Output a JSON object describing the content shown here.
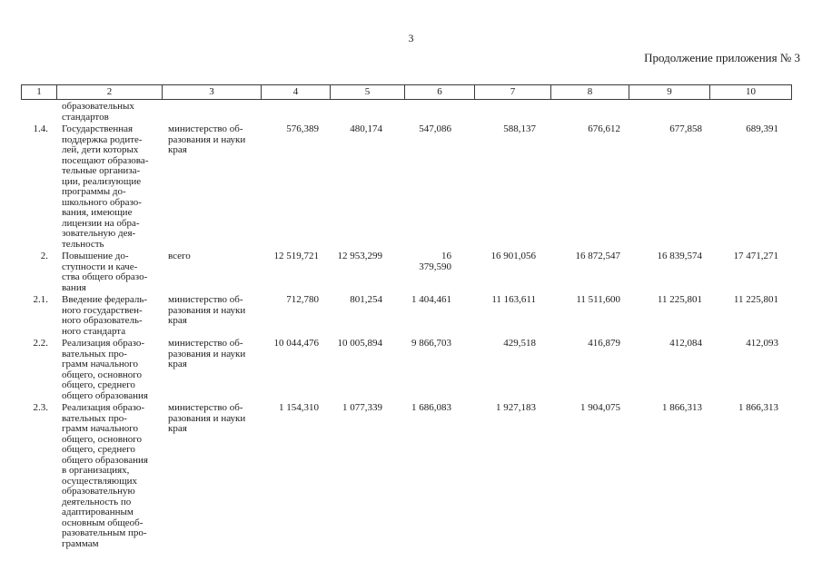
{
  "page": {
    "page_number": "3",
    "continuation_note": "Продолжение приложения № 3"
  },
  "table": {
    "column_numbers": [
      "1",
      "2",
      "3",
      "4",
      "5",
      "6",
      "7",
      "8",
      "9",
      "10"
    ],
    "carryover_row": {
      "name": "образовательных\nстандартов"
    },
    "rows": [
      {
        "num": "1.4.",
        "name": "Государственная\nподдержка родите-\nлей, дети которых\nпосещают образова-\nтельные организа-\nции, реализующие\nпрограммы до-\nшкольного образо-\nвания, имеющие\nлицензии на обра-\nзовательную дея-\nтельность",
        "executor": "министерство об-\nразования и науки\nкрая",
        "values": [
          "576,389",
          "480,174",
          "547,086",
          "588,137",
          "676,612",
          "677,858",
          "689,391"
        ]
      },
      {
        "num": "2.",
        "name": "Повышение до-\nступности и каче-\nства общего образо-\nвания",
        "executor": "всего",
        "values": [
          "12 519,721",
          "12 953,299",
          "16 379,590",
          "16 901,056",
          "16 872,547",
          "16 839,574",
          "17 471,271"
        ]
      },
      {
        "num": "2.1.",
        "name": "Введение федераль-\nного государствен-\nного образователь-\nного стандарта",
        "executor": "министерство об-\nразования и науки\nкрая",
        "values": [
          "712,780",
          "801,254",
          "1 404,461",
          "11 163,611",
          "11 511,600",
          "11 225,801",
          "11 225,801"
        ]
      },
      {
        "num": "2.2.",
        "name": "Реализация образо-\nвательных про-\nграмм начального\nобщего, основного\nобщего, среднего\nобщего образования",
        "executor": "министерство об-\nразования и науки\nкрая",
        "values": [
          "10 044,476",
          "10 005,894",
          "9 866,703",
          "429,518",
          "416,879",
          "412,084",
          "412,093"
        ]
      },
      {
        "num": "2.3.",
        "name": "Реализация образо-\nвательных про-\nграмм начального\nобщего, основного\nобщего, среднего\nобщего образования\nв организациях,\nосуществляющих\nобразовательную\nдеятельность по\nадаптированным\nосновным общеоб-\nразовательным про-\nграммам",
        "executor": "министерство об-\nразования и науки\nкрая",
        "values": [
          "1 154,310",
          "1 077,339",
          "1 686,083",
          "1 927,183",
          "1 904,075",
          "1 866,313",
          "1 866,313"
        ]
      }
    ]
  }
}
